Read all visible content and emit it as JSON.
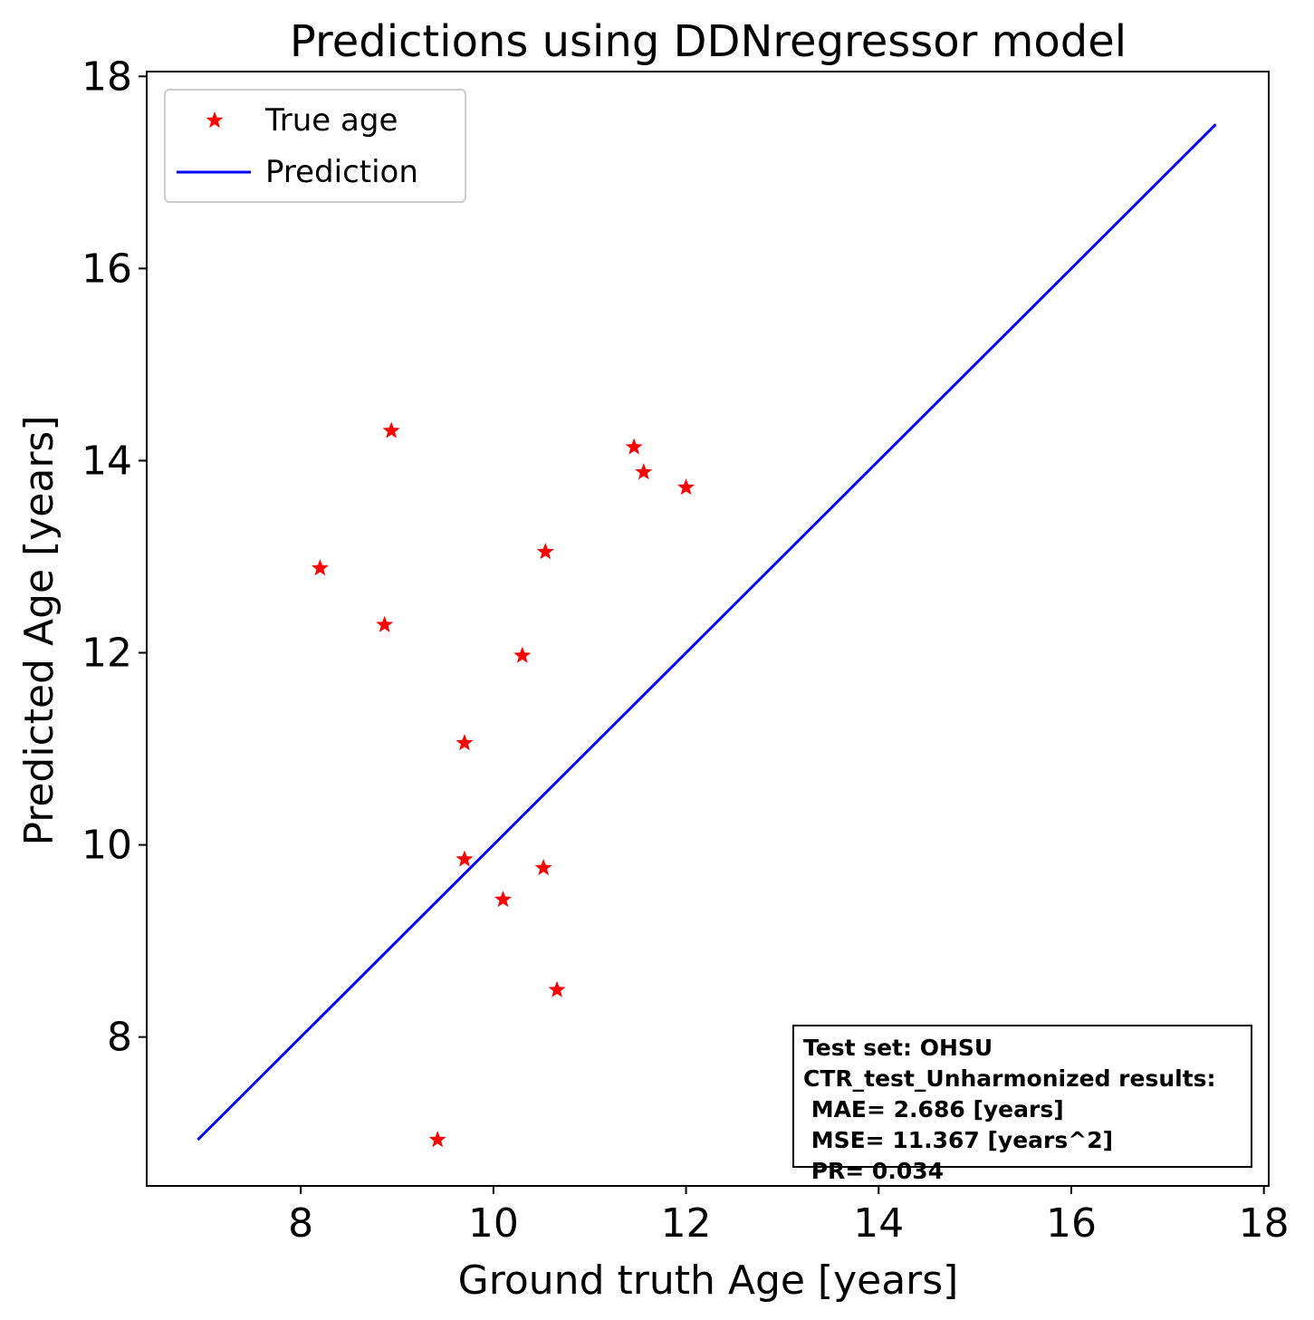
{
  "chart_data": {
    "type": "scatter",
    "title": "Predictions using DDNregressor model",
    "xlabel": "Ground truth Age [years]",
    "ylabel": "Predicted Age [years]",
    "xlim": [
      6.4,
      18.05
    ],
    "ylim": [
      6.45,
      18.05
    ],
    "xticks": [
      8,
      10,
      12,
      14,
      16,
      18
    ],
    "yticks": [
      8,
      10,
      12,
      14,
      16,
      18
    ],
    "legend_position": "upper-left",
    "series": [
      {
        "name": "True age",
        "kind": "scatter",
        "marker": "star",
        "color": "#ff0000",
        "points": [
          {
            "x": 8.2,
            "y": 12.88
          },
          {
            "x": 8.87,
            "y": 12.29
          },
          {
            "x": 8.94,
            "y": 14.31
          },
          {
            "x": 9.42,
            "y": 6.93
          },
          {
            "x": 9.7,
            "y": 11.06
          },
          {
            "x": 9.7,
            "y": 9.85
          },
          {
            "x": 10.1,
            "y": 9.43
          },
          {
            "x": 10.3,
            "y": 11.97
          },
          {
            "x": 10.52,
            "y": 9.76
          },
          {
            "x": 10.54,
            "y": 13.05
          },
          {
            "x": 10.66,
            "y": 8.49
          },
          {
            "x": 11.46,
            "y": 14.14
          },
          {
            "x": 11.56,
            "y": 13.88
          },
          {
            "x": 12.0,
            "y": 13.72
          }
        ]
      },
      {
        "name": "Prediction",
        "kind": "line",
        "color": "#0000ff",
        "x": [
          6.93,
          17.5
        ],
        "y": [
          6.93,
          17.5
        ]
      }
    ],
    "annotation": {
      "lines": [
        "Test set: OHSU",
        "CTR_test_Unharmonized results:",
        " MAE= 2.686 [years]",
        " MSE= 11.367 [years^2]",
        " PR= 0.034"
      ]
    }
  }
}
